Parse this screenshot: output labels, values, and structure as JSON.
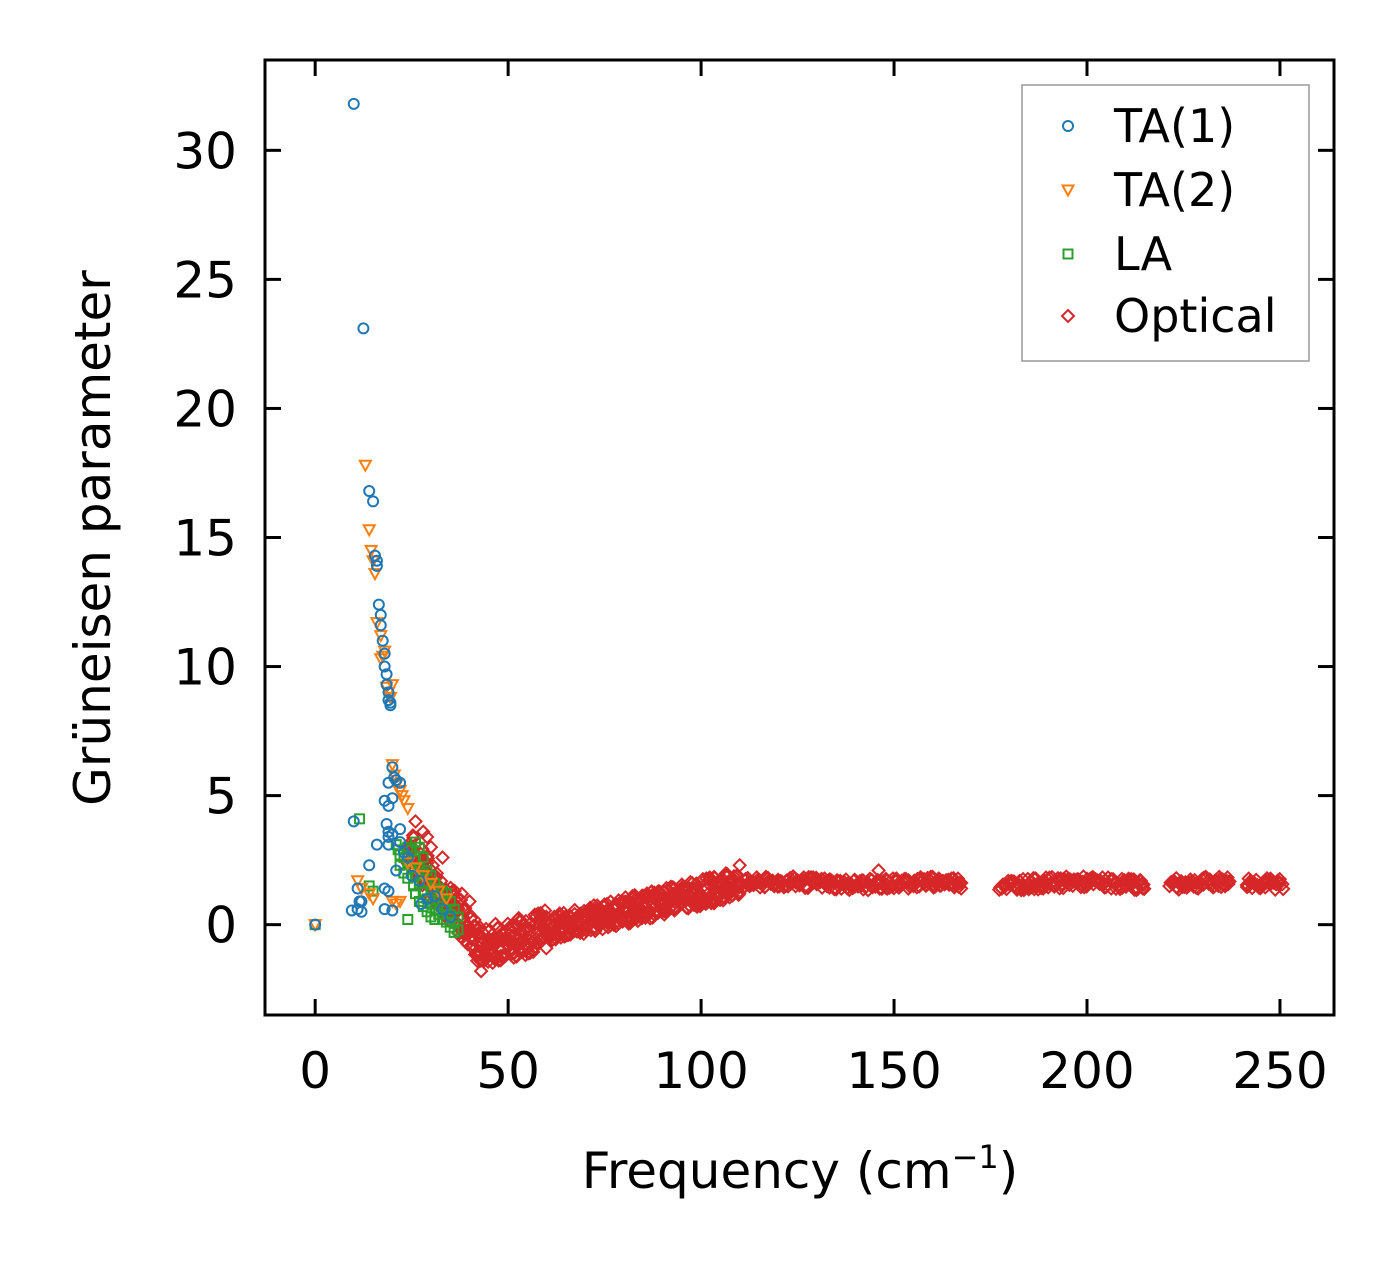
{
  "chart_data": {
    "type": "scatter",
    "title": "",
    "xlabel": "Frequency (cm",
    "xlabel_superscript": "−1",
    "xlabel_suffix": ")",
    "ylabel": "Grüneisen parameter",
    "xlim": [
      -13,
      264
    ],
    "ylim": [
      -3.5,
      33.5
    ],
    "xticks": [
      0,
      50,
      100,
      150,
      200,
      250
    ],
    "yticks": [
      0,
      5,
      10,
      15,
      20,
      25,
      30
    ],
    "xtick_labels": [
      "0",
      "50",
      "100",
      "150",
      "200",
      "250"
    ],
    "ytick_labels": [
      "0",
      "5",
      "10",
      "15",
      "20",
      "25",
      "30"
    ],
    "grid": false,
    "legend_position": "top-right",
    "series": [
      {
        "name": "TA(1)",
        "marker": "circle",
        "color": "#1f77b4",
        "points": [
          [
            0,
            0
          ],
          [
            10,
            31.8
          ],
          [
            12.5,
            23.1
          ],
          [
            14,
            16.8
          ],
          [
            15,
            16.4
          ],
          [
            15.5,
            14.3
          ],
          [
            16,
            14.1
          ],
          [
            16,
            13.9
          ],
          [
            16.5,
            12.4
          ],
          [
            17,
            12.0
          ],
          [
            17,
            11.6
          ],
          [
            17.5,
            11.0
          ],
          [
            18,
            10.5
          ],
          [
            18,
            10.0
          ],
          [
            18.5,
            9.7
          ],
          [
            18.5,
            9.3
          ],
          [
            19,
            9.0
          ],
          [
            19,
            8.7
          ],
          [
            19.5,
            8.5
          ],
          [
            19.5,
            8.6
          ],
          [
            20,
            6.1
          ],
          [
            20.5,
            5.7
          ],
          [
            19,
            5.5
          ],
          [
            21,
            5.6
          ],
          [
            22,
            5.5
          ],
          [
            18,
            4.8
          ],
          [
            19,
            4.6
          ],
          [
            20,
            4.9
          ],
          [
            18.5,
            3.9
          ],
          [
            19,
            3.6
          ],
          [
            19,
            3.4
          ],
          [
            20,
            3.5
          ],
          [
            22,
            3.7
          ],
          [
            22,
            3.2
          ],
          [
            19,
            3.1
          ],
          [
            16,
            3.1
          ],
          [
            23,
            2.8
          ],
          [
            14,
            2.3
          ],
          [
            10,
            4.0
          ],
          [
            11,
            1.4
          ],
          [
            11.5,
            0.9
          ],
          [
            11,
            0.6
          ],
          [
            12,
            0.5
          ],
          [
            9.5,
            0.55
          ],
          [
            12,
            0.9
          ],
          [
            18,
            1.4
          ],
          [
            19,
            1.3
          ],
          [
            18,
            0.6
          ],
          [
            20,
            0.55
          ],
          [
            21,
            2.1
          ],
          [
            24,
            2.6
          ],
          [
            25,
            1.9
          ],
          [
            27,
            1.7
          ],
          [
            27.5,
            0.8
          ],
          [
            29,
            1.0
          ],
          [
            31,
            1.1
          ],
          [
            33,
            0.6
          ],
          [
            35,
            0.3
          ]
        ]
      },
      {
        "name": "TA(2)",
        "marker": "triangle-down",
        "color": "#ff7f0e",
        "points": [
          [
            0,
            0
          ],
          [
            13,
            17.8
          ],
          [
            14,
            15.3
          ],
          [
            14.5,
            14.5
          ],
          [
            15,
            14.1
          ],
          [
            15.5,
            13.6
          ],
          [
            16,
            11.7
          ],
          [
            17,
            11.2
          ],
          [
            17.5,
            10.4
          ],
          [
            17,
            10.3
          ],
          [
            18,
            10.6
          ],
          [
            18.5,
            9.2
          ],
          [
            19,
            9.0
          ],
          [
            19.5,
            8.8
          ],
          [
            20,
            9.3
          ],
          [
            20,
            6.2
          ],
          [
            20.5,
            5.8
          ],
          [
            21,
            5.4
          ],
          [
            22,
            5.2
          ],
          [
            22.5,
            5.0
          ],
          [
            23,
            4.8
          ],
          [
            24,
            4.5
          ],
          [
            11,
            1.7
          ],
          [
            12,
            1.4
          ],
          [
            14,
            1.2
          ],
          [
            15,
            1.0
          ],
          [
            20,
            0.9
          ],
          [
            21,
            0.8
          ],
          [
            22,
            0.9
          ],
          [
            24,
            2.4
          ],
          [
            26,
            2.2
          ],
          [
            28,
            1.9
          ],
          [
            30,
            1.6
          ],
          [
            32,
            1.3
          ],
          [
            34,
            1.0
          ]
        ]
      },
      {
        "name": "LA",
        "marker": "square",
        "color": "#2ca02c",
        "points": [
          [
            0,
            0
          ],
          [
            11.5,
            4.1
          ],
          [
            14,
            1.5
          ],
          [
            15,
            1.3
          ],
          [
            21,
            3.1
          ],
          [
            21.5,
            2.9
          ],
          [
            22,
            2.7
          ],
          [
            22,
            2.3
          ],
          [
            23,
            2.6
          ],
          [
            23,
            2.0
          ],
          [
            24,
            3.0
          ],
          [
            24,
            2.4
          ],
          [
            24,
            1.8
          ],
          [
            24,
            0.2
          ],
          [
            25,
            2.9
          ],
          [
            25,
            2.2
          ],
          [
            25.5,
            1.5
          ],
          [
            26,
            3.2
          ],
          [
            26,
            2.5
          ],
          [
            26,
            1.9
          ],
          [
            26,
            1.2
          ],
          [
            27,
            3.0
          ],
          [
            27,
            2.2
          ],
          [
            27,
            1.6
          ],
          [
            27,
            0.9
          ],
          [
            28,
            2.6
          ],
          [
            28,
            2.0
          ],
          [
            28,
            1.3
          ],
          [
            28,
            0.7
          ],
          [
            29,
            2.1
          ],
          [
            29,
            1.6
          ],
          [
            29,
            1.0
          ],
          [
            29,
            0.5
          ],
          [
            30,
            1.9
          ],
          [
            30,
            1.3
          ],
          [
            30,
            0.8
          ],
          [
            30,
            0.3
          ],
          [
            31,
            1.6
          ],
          [
            31,
            1.1
          ],
          [
            31,
            0.6
          ],
          [
            31,
            0.2
          ],
          [
            32,
            1.4
          ],
          [
            32,
            0.9
          ],
          [
            32,
            0.4
          ],
          [
            33,
            1.3
          ],
          [
            33,
            0.7
          ],
          [
            33,
            0.2
          ],
          [
            34,
            1.2
          ],
          [
            34,
            0.6
          ],
          [
            34,
            0.1
          ],
          [
            35,
            0.9
          ],
          [
            35,
            0.4
          ],
          [
            35,
            -0.1
          ],
          [
            36,
            0.6
          ],
          [
            36,
            0.1
          ],
          [
            36,
            -0.3
          ],
          [
            37,
            0.3
          ],
          [
            37,
            -0.2
          ]
        ]
      },
      {
        "name": "Optical",
        "marker": "diamond",
        "color": "#d62728",
        "points": "generated: dense band rising from about -1 near 42 cm-1 to about 1.8 near 110-250 cm-1"
      }
    ]
  },
  "legend": {
    "items": [
      {
        "label": "TA(1)",
        "marker": "circle",
        "color": "#1f77b4"
      },
      {
        "label": "TA(2)",
        "marker": "triangle-down",
        "color": "#ff7f0e"
      },
      {
        "label": "LA",
        "marker": "square",
        "color": "#2ca02c"
      },
      {
        "label": "Optical",
        "marker": "diamond",
        "color": "#d62728"
      }
    ]
  }
}
